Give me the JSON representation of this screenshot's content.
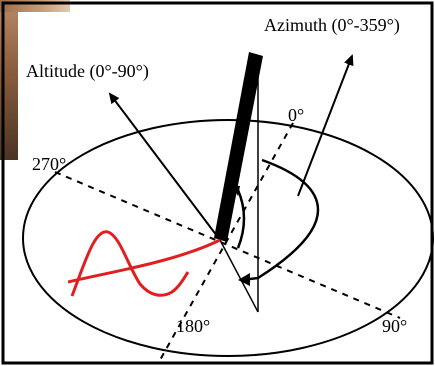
{
  "labels": {
    "azimuth": "Azimuth (0°-359°)",
    "altitude": "Altitude (0°-90°)",
    "north": "0°",
    "west": "270°",
    "south": "180°",
    "east": "90°"
  },
  "colors": {
    "line": "#000000",
    "shadow_path": "#e02020",
    "background": "#ffffff"
  }
}
